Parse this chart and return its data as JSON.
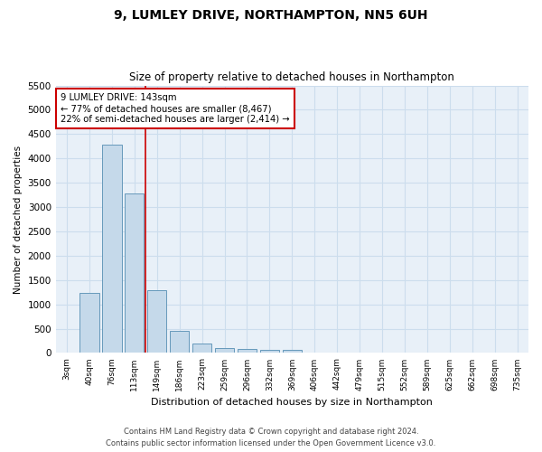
{
  "title": "9, LUMLEY DRIVE, NORTHAMPTON, NN5 6UH",
  "subtitle": "Size of property relative to detached houses in Northampton",
  "xlabel": "Distribution of detached houses by size in Northampton",
  "ylabel": "Number of detached properties",
  "footnote1": "Contains HM Land Registry data © Crown copyright and database right 2024.",
  "footnote2": "Contains public sector information licensed under the Open Government Licence v3.0.",
  "bar_color": "#c5d9ea",
  "bar_edge_color": "#6699bb",
  "annotation_box_color": "#cc0000",
  "vline_color": "#cc0000",
  "grid_color": "#ccdded",
  "background_color": "#e8f0f8",
  "categories": [
    "3sqm",
    "40sqm",
    "76sqm",
    "113sqm",
    "149sqm",
    "186sqm",
    "223sqm",
    "259sqm",
    "296sqm",
    "332sqm",
    "369sqm",
    "406sqm",
    "442sqm",
    "479sqm",
    "515sqm",
    "552sqm",
    "589sqm",
    "625sqm",
    "662sqm",
    "698sqm",
    "735sqm"
  ],
  "values": [
    0,
    1230,
    4280,
    3280,
    1290,
    460,
    200,
    110,
    80,
    55,
    55,
    0,
    0,
    0,
    0,
    0,
    0,
    0,
    0,
    0,
    0
  ],
  "ylim": [
    0,
    5500
  ],
  "yticks": [
    0,
    500,
    1000,
    1500,
    2000,
    2500,
    3000,
    3500,
    4000,
    4500,
    5000,
    5500
  ],
  "vline_x": 3.47,
  "annotation_text": "9 LUMLEY DRIVE: 143sqm\n← 77% of detached houses are smaller (8,467)\n22% of semi-detached houses are larger (2,414) →",
  "bar_width": 0.85
}
